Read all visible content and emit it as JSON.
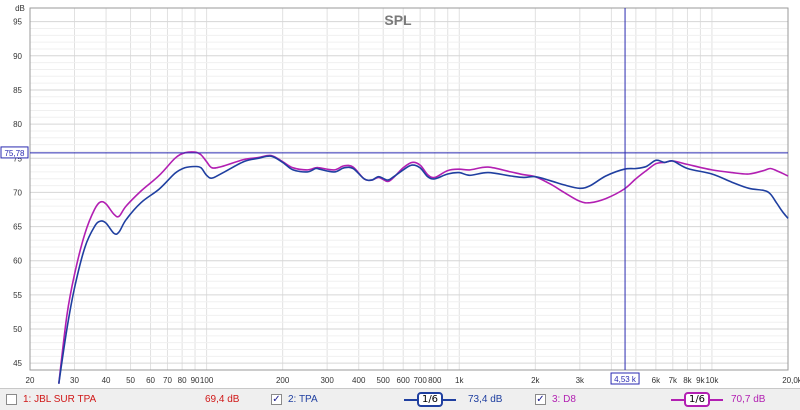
{
  "chart_data": {
    "type": "line",
    "title": "SPL",
    "ylabel": "dB",
    "xscale": "log",
    "xlim": [
      20,
      20000
    ],
    "ylim": [
      44,
      97
    ],
    "yticks": [
      45,
      50,
      55,
      60,
      65,
      70,
      75,
      80,
      85,
      90,
      95
    ],
    "xtick_labels": [
      {
        "v": 20,
        "t": "20"
      },
      {
        "v": 30,
        "t": "30"
      },
      {
        "v": 40,
        "t": "40"
      },
      {
        "v": 50,
        "t": "50"
      },
      {
        "v": 60,
        "t": "60"
      },
      {
        "v": 70,
        "t": "70"
      },
      {
        "v": 80,
        "t": "80"
      },
      {
        "v": 90,
        "t": "90"
      },
      {
        "v": 100,
        "t": "100"
      },
      {
        "v": 200,
        "t": "200"
      },
      {
        "v": 300,
        "t": "300"
      },
      {
        "v": 400,
        "t": "400"
      },
      {
        "v": 500,
        "t": "500"
      },
      {
        "v": 600,
        "t": "600"
      },
      {
        "v": 700,
        "t": "700"
      },
      {
        "v": 800,
        "t": "800"
      },
      {
        "v": 1000,
        "t": "1k"
      },
      {
        "v": 2000,
        "t": "2k"
      },
      {
        "v": 3000,
        "t": "3k"
      },
      {
        "v": 6000,
        "t": "6k"
      },
      {
        "v": 7000,
        "t": "7k"
      },
      {
        "v": 8000,
        "t": "8k"
      },
      {
        "v": 9000,
        "t": "9k"
      },
      {
        "v": 10000,
        "t": "10k"
      },
      {
        "v": 20000,
        "t": "20,0k Hz"
      }
    ],
    "grid": true,
    "cursor": {
      "x": 4530,
      "y": 75.78,
      "x_label": "4,53 k",
      "y_label": "75,78"
    },
    "series": [
      {
        "name": "2: TPA",
        "color": "#1f3fa0",
        "points": [
          [
            26,
            42
          ],
          [
            28,
            50
          ],
          [
            30,
            56
          ],
          [
            33,
            62
          ],
          [
            36,
            65
          ],
          [
            38,
            65.8
          ],
          [
            40,
            65.5
          ],
          [
            43,
            64
          ],
          [
            45,
            64.2
          ],
          [
            48,
            66
          ],
          [
            55,
            68.5
          ],
          [
            65,
            70.5
          ],
          [
            75,
            72.8
          ],
          [
            82,
            73.6
          ],
          [
            90,
            73.8
          ],
          [
            95,
            73.6
          ],
          [
            100,
            72.5
          ],
          [
            105,
            72.1
          ],
          [
            115,
            72.8
          ],
          [
            140,
            74.5
          ],
          [
            160,
            75
          ],
          [
            180,
            75.3
          ],
          [
            200,
            74.4
          ],
          [
            220,
            73.3
          ],
          [
            250,
            73
          ],
          [
            270,
            73.5
          ],
          [
            280,
            73.4
          ],
          [
            320,
            73
          ],
          [
            350,
            73.6
          ],
          [
            380,
            73.5
          ],
          [
            420,
            72
          ],
          [
            450,
            71.8
          ],
          [
            480,
            72.3
          ],
          [
            520,
            71.8
          ],
          [
            550,
            72.3
          ],
          [
            600,
            73.3
          ],
          [
            650,
            74
          ],
          [
            700,
            73.6
          ],
          [
            750,
            72.3
          ],
          [
            800,
            72
          ],
          [
            900,
            72.7
          ],
          [
            1000,
            72.9
          ],
          [
            1100,
            72.5
          ],
          [
            1300,
            72.9
          ],
          [
            1600,
            72.4
          ],
          [
            1800,
            72.2
          ],
          [
            2000,
            72.3
          ],
          [
            2300,
            71.7
          ],
          [
            2600,
            71.1
          ],
          [
            3000,
            70.6
          ],
          [
            3300,
            71
          ],
          [
            3800,
            72.4
          ],
          [
            4500,
            73.4
          ],
          [
            5000,
            73.5
          ],
          [
            5500,
            73.8
          ],
          [
            6000,
            74.7
          ],
          [
            6500,
            74.4
          ],
          [
            7000,
            74.6
          ],
          [
            8000,
            73.5
          ],
          [
            10000,
            72.7
          ],
          [
            12000,
            71.5
          ],
          [
            14000,
            70.6
          ],
          [
            16000,
            70.3
          ],
          [
            17000,
            69.8
          ],
          [
            18000,
            68.5
          ],
          [
            19000,
            67.2
          ],
          [
            20000,
            66.2
          ]
        ]
      },
      {
        "name": "3: D8",
        "color": "#b21fb2",
        "points": [
          [
            26,
            42
          ],
          [
            28,
            52
          ],
          [
            30,
            58
          ],
          [
            33,
            64
          ],
          [
            36,
            67.5
          ],
          [
            38,
            68.6
          ],
          [
            40,
            68.3
          ],
          [
            43,
            66.8
          ],
          [
            45,
            66.5
          ],
          [
            48,
            68
          ],
          [
            55,
            70.2
          ],
          [
            65,
            72.5
          ],
          [
            75,
            75
          ],
          [
            82,
            75.8
          ],
          [
            90,
            75.9
          ],
          [
            95,
            75.5
          ],
          [
            100,
            74.5
          ],
          [
            105,
            73.6
          ],
          [
            115,
            73.8
          ],
          [
            140,
            74.8
          ],
          [
            160,
            75.1
          ],
          [
            180,
            75.4
          ],
          [
            200,
            74.5
          ],
          [
            220,
            73.6
          ],
          [
            250,
            73.3
          ],
          [
            270,
            73.6
          ],
          [
            280,
            73.6
          ],
          [
            320,
            73.3
          ],
          [
            350,
            73.9
          ],
          [
            380,
            73.7
          ],
          [
            420,
            72
          ],
          [
            450,
            71.8
          ],
          [
            480,
            72.2
          ],
          [
            520,
            71.6
          ],
          [
            550,
            72.2
          ],
          [
            600,
            73.6
          ],
          [
            650,
            74.4
          ],
          [
            700,
            74
          ],
          [
            750,
            72.6
          ],
          [
            800,
            72.2
          ],
          [
            900,
            73.2
          ],
          [
            1000,
            73.4
          ],
          [
            1100,
            73.3
          ],
          [
            1300,
            73.7
          ],
          [
            1600,
            73
          ],
          [
            1800,
            72.6
          ],
          [
            2000,
            72.3
          ],
          [
            2300,
            71.2
          ],
          [
            2600,
            70
          ],
          [
            3000,
            68.7
          ],
          [
            3300,
            68.5
          ],
          [
            3800,
            69.1
          ],
          [
            4500,
            70.5
          ],
          [
            5000,
            72
          ],
          [
            5500,
            73.2
          ],
          [
            6000,
            74.2
          ],
          [
            6500,
            74.4
          ],
          [
            7000,
            74.6
          ],
          [
            8000,
            74.1
          ],
          [
            10000,
            73.3
          ],
          [
            12000,
            72.9
          ],
          [
            14000,
            72.7
          ],
          [
            16000,
            73.2
          ],
          [
            17000,
            73.5
          ],
          [
            18000,
            73.2
          ],
          [
            19000,
            72.8
          ],
          [
            20000,
            72.4
          ]
        ]
      }
    ]
  },
  "legend": {
    "items": [
      {
        "label": "1: JBL SUR TPA",
        "value": "69,4 dB",
        "checked": false,
        "color": "#d01818"
      },
      {
        "label": "2: TPA",
        "value": "73,4 dB",
        "checked": true,
        "color": "#1f3fa0",
        "smoothing": "1/6"
      },
      {
        "label": "3: D8",
        "value": "70,7 dB",
        "checked": true,
        "color": "#b21fb2",
        "smoothing": "1/6"
      }
    ]
  }
}
